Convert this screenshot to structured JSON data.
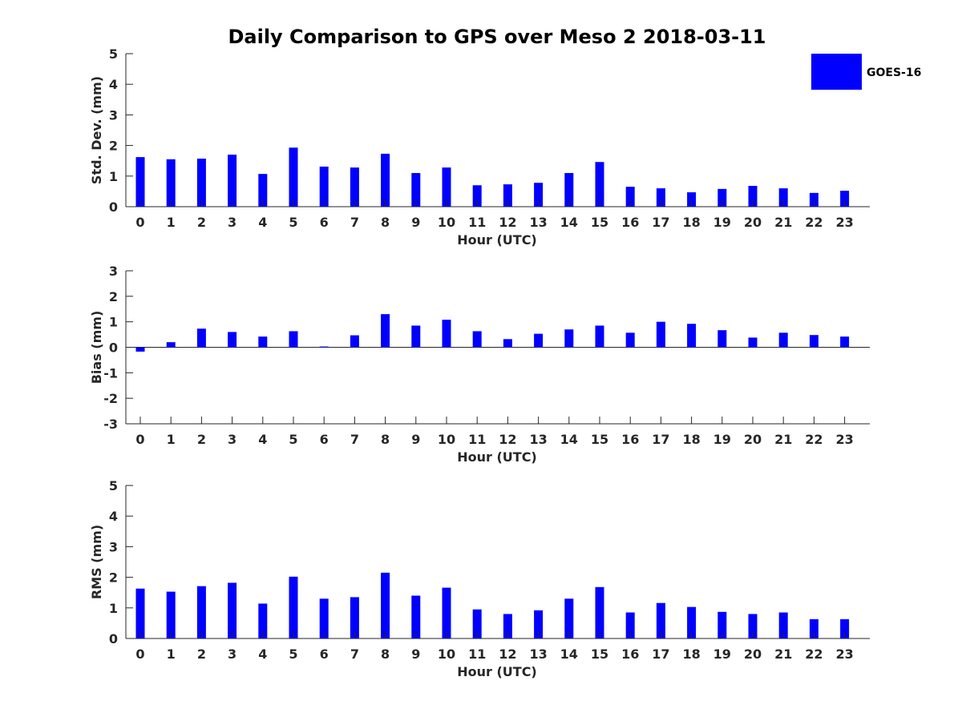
{
  "chart_data": {
    "title": "Daily Comparison to GPS over Meso 2 2018-03-11",
    "legend": {
      "label": "GOES-16",
      "color": "#0000ff",
      "placement": "top-right"
    },
    "series_color": "#0000ff",
    "panels": [
      {
        "id": "std",
        "type": "bar",
        "ylabel": "Std. Dev. (mm)",
        "xlabel": "Hour (UTC)",
        "ylim": [
          0,
          5
        ],
        "yticks": [
          0,
          1,
          2,
          3,
          4,
          5
        ],
        "categories": [
          "0",
          "1",
          "2",
          "3",
          "4",
          "5",
          "6",
          "7",
          "8",
          "9",
          "10",
          "11",
          "12",
          "13",
          "14",
          "15",
          "16",
          "17",
          "18",
          "19",
          "20",
          "21",
          "22",
          "23"
        ],
        "values": [
          1.62,
          1.55,
          1.57,
          1.7,
          1.07,
          1.93,
          1.31,
          1.28,
          1.73,
          1.1,
          1.28,
          0.7,
          0.73,
          0.78,
          1.1,
          1.46,
          0.65,
          0.6,
          0.47,
          0.58,
          0.68,
          0.6,
          0.45,
          0.52
        ]
      },
      {
        "id": "bias",
        "type": "bar",
        "ylabel": "Bias (mm)",
        "xlabel": "Hour (UTC)",
        "ylim": [
          -3,
          3
        ],
        "yticks": [
          -3,
          -2,
          -1,
          0,
          1,
          2,
          3
        ],
        "categories": [
          "0",
          "1",
          "2",
          "3",
          "4",
          "5",
          "6",
          "7",
          "8",
          "9",
          "10",
          "11",
          "12",
          "13",
          "14",
          "15",
          "16",
          "17",
          "18",
          "19",
          "20",
          "21",
          "22",
          "23"
        ],
        "values": [
          -0.17,
          0.2,
          0.73,
          0.6,
          0.42,
          0.63,
          0.03,
          0.47,
          1.3,
          0.85,
          1.08,
          0.63,
          0.32,
          0.53,
          0.7,
          0.85,
          0.57,
          1.0,
          0.92,
          0.67,
          0.38,
          0.57,
          0.48,
          0.42
        ]
      },
      {
        "id": "rms",
        "type": "bar",
        "ylabel": "RMS (mm)",
        "xlabel": "Hour (UTC)",
        "ylim": [
          0,
          5
        ],
        "yticks": [
          0,
          1,
          2,
          3,
          4,
          5
        ],
        "categories": [
          "0",
          "1",
          "2",
          "3",
          "4",
          "5",
          "6",
          "7",
          "8",
          "9",
          "10",
          "11",
          "12",
          "13",
          "14",
          "15",
          "16",
          "17",
          "18",
          "19",
          "20",
          "21",
          "22",
          "23"
        ],
        "values": [
          1.63,
          1.53,
          1.71,
          1.82,
          1.14,
          2.02,
          1.3,
          1.35,
          2.15,
          1.4,
          1.66,
          0.95,
          0.8,
          0.92,
          1.3,
          1.68,
          0.85,
          1.16,
          1.03,
          0.87,
          0.8,
          0.85,
          0.63,
          0.63
        ]
      }
    ]
  }
}
